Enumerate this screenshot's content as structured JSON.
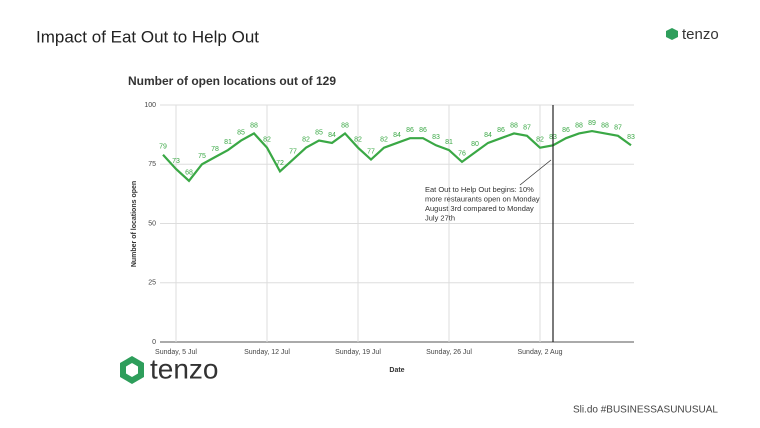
{
  "slide_title": "Impact of Eat Out to Help Out",
  "brand": "tenzo",
  "footer": "Sli.do #BUSINESSASUNUSUAL",
  "chart_data": {
    "type": "line",
    "title": "Number of open locations out of 129",
    "x_label": "Date",
    "y_label": "Number of locations open",
    "categories": [
      null,
      "Sunday, 5 Jul",
      null,
      null,
      null,
      null,
      null,
      null,
      "Sunday, 12 Jul",
      null,
      null,
      null,
      null,
      null,
      null,
      "Sunday, 19 Jul",
      null,
      null,
      null,
      null,
      null,
      null,
      "Sunday, 26 Jul",
      null,
      null,
      null,
      null,
      null,
      null,
      "Sunday, 2 Aug",
      null,
      null,
      null,
      null,
      null,
      null,
      null
    ],
    "series": [
      {
        "name": "Open locations",
        "color": "#3aa845",
        "values": [
          79,
          73,
          68,
          75,
          78,
          81,
          85,
          88,
          82,
          72,
          77,
          82,
          85,
          84,
          88,
          82,
          77,
          82,
          84,
          86,
          86,
          83,
          81,
          76,
          80,
          84,
          86,
          88,
          87,
          82,
          83,
          86,
          88,
          89,
          88,
          87,
          83
        ]
      }
    ],
    "ylim": [
      0,
      100
    ],
    "yticks": [
      0,
      25,
      50,
      75,
      100
    ],
    "grid": true,
    "annotation": [
      "Eat Out to Help Out begins: 10%",
      "more restaurants open on Monday",
      "August 3rd compared to Monday",
      "July 27th"
    ]
  }
}
